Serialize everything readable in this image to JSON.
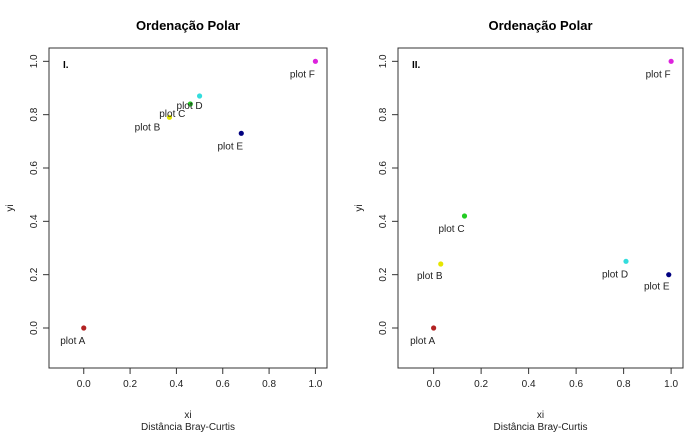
{
  "chart_data": [
    {
      "type": "scatter",
      "title": "Ordenação Polar",
      "panel_label": "I.",
      "xlabel": "xi",
      "xlabel2": "Distância Bray-Curtis",
      "ylabel": "yi",
      "xlim": [
        -0.15,
        1.05
      ],
      "ylim": [
        -0.15,
        1.05
      ],
      "x_ticks": [
        0.0,
        0.2,
        0.4,
        0.6,
        0.8,
        1.0
      ],
      "y_ticks": [
        0.0,
        0.2,
        0.4,
        0.6,
        0.8,
        1.0
      ],
      "x_tick_labels": [
        "0.0",
        "0.2",
        "0.4",
        "0.6",
        "0.8",
        "1.0"
      ],
      "y_tick_labels": [
        "0.0",
        "0.2",
        "0.4",
        "0.6",
        "0.8",
        "1.0"
      ],
      "points": [
        {
          "label": "plot A",
          "x": 0.0,
          "y": 0.0,
          "color": "#b22222"
        },
        {
          "label": "plot B",
          "x": 0.37,
          "y": 0.79,
          "color": "#e6e600"
        },
        {
          "label": "plot C",
          "x": 0.46,
          "y": 0.84,
          "color": "#22cc22"
        },
        {
          "label": "plot D",
          "x": 0.5,
          "y": 0.87,
          "color": "#33dddd"
        },
        {
          "label": "plot E",
          "x": 0.68,
          "y": 0.73,
          "color": "#000080"
        },
        {
          "label": "plot F",
          "x": 1.0,
          "y": 1.0,
          "color": "#dd22dd"
        }
      ]
    },
    {
      "type": "scatter",
      "title": "Ordenação Polar",
      "panel_label": "II.",
      "xlabel": "xi",
      "xlabel2": "Distância Bray-Curtis",
      "ylabel": "yi",
      "xlim": [
        -0.15,
        1.05
      ],
      "ylim": [
        -0.15,
        1.05
      ],
      "x_ticks": [
        0.0,
        0.2,
        0.4,
        0.6,
        0.8,
        1.0
      ],
      "y_ticks": [
        0.0,
        0.2,
        0.4,
        0.6,
        0.8,
        1.0
      ],
      "x_tick_labels": [
        "0.0",
        "0.2",
        "0.4",
        "0.6",
        "0.8",
        "1.0"
      ],
      "y_tick_labels": [
        "0.0",
        "0.2",
        "0.4",
        "0.6",
        "0.8",
        "1.0"
      ],
      "points": [
        {
          "label": "plot A",
          "x": 0.0,
          "y": 0.0,
          "color": "#b22222"
        },
        {
          "label": "plot B",
          "x": 0.03,
          "y": 0.24,
          "color": "#e6e600"
        },
        {
          "label": "plot C",
          "x": 0.13,
          "y": 0.42,
          "color": "#22cc22"
        },
        {
          "label": "plot D",
          "x": 0.81,
          "y": 0.25,
          "color": "#33dddd"
        },
        {
          "label": "plot E",
          "x": 0.99,
          "y": 0.2,
          "color": "#000080"
        },
        {
          "label": "plot F",
          "x": 1.0,
          "y": 1.0,
          "color": "#dd22dd"
        }
      ]
    }
  ]
}
